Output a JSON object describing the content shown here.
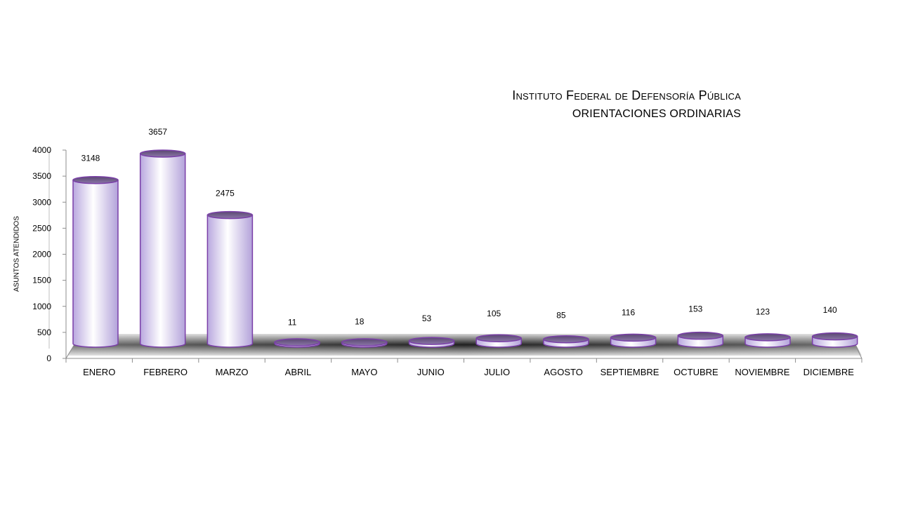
{
  "chart_data": {
    "type": "bar",
    "style": "3d-cylinder",
    "title": "Instituto Federal de Defensoría Pública",
    "subtitle": "ORIENTACIONES ORDINARIAS",
    "xlabel": "",
    "ylabel": "ASUNTOS ATENDIDOS",
    "ylim": [
      0,
      4000
    ],
    "yticks": [
      0,
      500,
      1000,
      1500,
      2000,
      2500,
      3000,
      3500,
      4000
    ],
    "categories": [
      "ENERO",
      "FEBRERO",
      "MARZO",
      "ABRIL",
      "MAYO",
      "JUNIO",
      "JULIO",
      "AGOSTO",
      "SEPTIEMBRE",
      "OCTUBRE",
      "NOVIEMBRE",
      "DICIEMBRE"
    ],
    "values": [
      3148,
      3657,
      2475,
      11,
      18,
      53,
      105,
      85,
      116,
      153,
      123,
      140
    ],
    "colors": {
      "bar_fill": "#c9bce6",
      "bar_highlight": "#ffffff",
      "bar_outline": "#7a3fa8",
      "bar_top": "#6e5a86",
      "floor_dark": "#1e1e1e",
      "floor_light": "#cfcfcf"
    }
  }
}
